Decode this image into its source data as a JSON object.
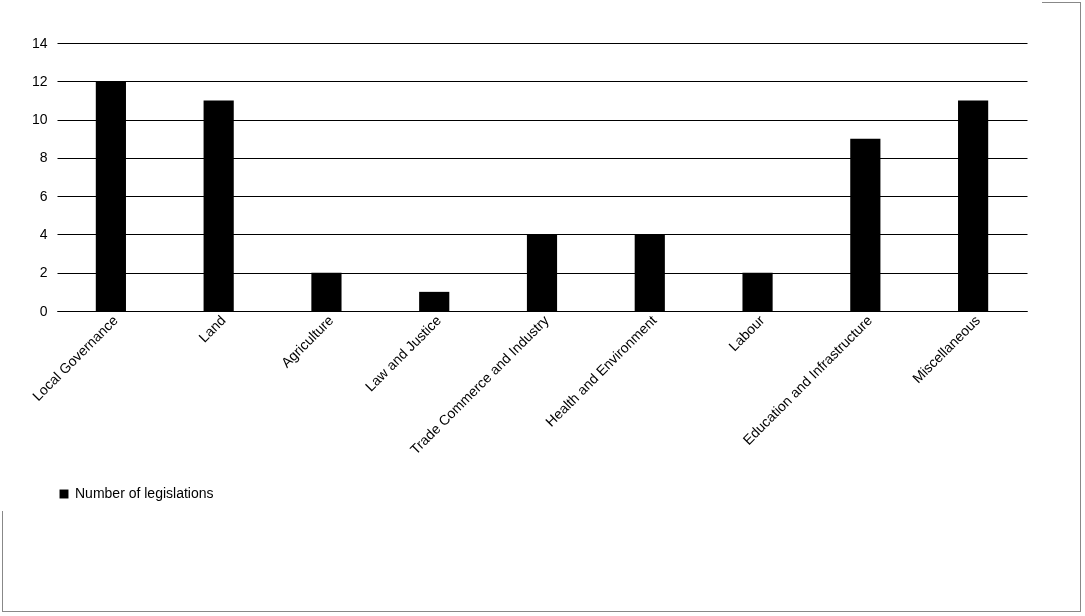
{
  "chart_data": {
    "type": "bar",
    "categories": [
      "Local Governance",
      "Land",
      "Agriculture",
      "Law and Justice",
      "Trade Commerce and Industry",
      "Health and Environment",
      "Labour",
      "Education and Infrastructure",
      "Miscellaneous"
    ],
    "series": [
      {
        "name": "Number of legislations",
        "color": "#000000",
        "values": [
          12,
          11,
          2,
          1,
          4,
          4,
          2,
          9,
          11
        ]
      }
    ],
    "ylim": [
      0,
      14
    ],
    "yticks": [
      0,
      2,
      4,
      6,
      8,
      10,
      12,
      14
    ],
    "grid": "y",
    "legend": "bottom"
  }
}
